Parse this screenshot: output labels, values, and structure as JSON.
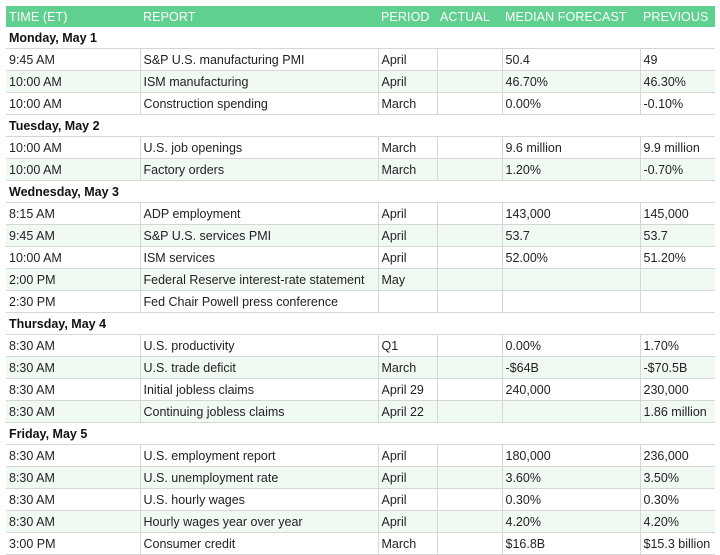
{
  "headers": {
    "time": "TIME (ET)",
    "report": "REPORT",
    "period": "PERIOD",
    "actual": "ACTUAL",
    "median_forecast": "MEDIAN FORECAST",
    "previous": "PREVIOUS"
  },
  "days": [
    {
      "label": "Monday, May 1",
      "rows": [
        {
          "time": "9:45 AM",
          "report": "S&P U.S. manufacturing PMI",
          "period": "April",
          "actual": "",
          "forecast": "50.4",
          "previous": "49"
        },
        {
          "time": "10:00 AM",
          "report": "ISM manufacturing",
          "period": "April",
          "actual": "",
          "forecast": "46.70%",
          "previous": "46.30%"
        },
        {
          "time": "10:00 AM",
          "report": "Construction spending",
          "period": "March",
          "actual": "",
          "forecast": "0.00%",
          "previous": "-0.10%"
        }
      ]
    },
    {
      "label": "Tuesday, May 2",
      "rows": [
        {
          "time": "10:00 AM",
          "report": "U.S. job openings",
          "period": "March",
          "actual": "",
          "forecast": "9.6 million",
          "previous": "9.9 million"
        },
        {
          "time": "10:00 AM",
          "report": "Factory orders",
          "period": "March",
          "actual": "",
          "forecast": "1.20%",
          "previous": "-0.70%"
        }
      ]
    },
    {
      "label": "Wednesday, May 3",
      "rows": [
        {
          "time": "8:15 AM",
          "report": "ADP employment",
          "period": "April",
          "actual": "",
          "forecast": "143,000",
          "previous": "145,000"
        },
        {
          "time": "9:45 AM",
          "report": "S&P U.S. services PMI",
          "period": "April",
          "actual": "",
          "forecast": "53.7",
          "previous": "53.7"
        },
        {
          "time": "10:00 AM",
          "report": "ISM services",
          "period": "April",
          "actual": "",
          "forecast": "52.00%",
          "previous": "51.20%"
        },
        {
          "time": "2:00 PM",
          "report": "Federal Reserve interest-rate statement",
          "period": "May",
          "actual": "",
          "forecast": "",
          "previous": ""
        },
        {
          "time": "2:30 PM",
          "report": "Fed Chair Powell press conference",
          "period": "",
          "actual": "",
          "forecast": "",
          "previous": ""
        }
      ]
    },
    {
      "label": "Thursday, May 4",
      "rows": [
        {
          "time": "8:30 AM",
          "report": "U.S. productivity",
          "period": "Q1",
          "actual": "",
          "forecast": "0.00%",
          "previous": "1.70%"
        },
        {
          "time": "8:30 AM",
          "report": "U.S. trade deficit",
          "period": "March",
          "actual": "",
          "forecast": "-$64B",
          "previous": "-$70.5B"
        },
        {
          "time": "8:30 AM",
          "report": "Initial jobless claims",
          "period": "April 29",
          "actual": "",
          "forecast": "240,000",
          "previous": "230,000"
        },
        {
          "time": "8:30 AM",
          "report": "Continuing jobless claims",
          "period": "April 22",
          "actual": "",
          "forecast": "",
          "previous": "1.86 million"
        }
      ]
    },
    {
      "label": "Friday, May 5",
      "rows": [
        {
          "time": "8:30 AM",
          "report": "U.S. employment report",
          "period": "April",
          "actual": "",
          "forecast": "180,000",
          "previous": "236,000"
        },
        {
          "time": "8:30 AM",
          "report": "U.S. unemployment rate",
          "period": "April",
          "actual": "",
          "forecast": "3.60%",
          "previous": "3.50%"
        },
        {
          "time": "8:30 AM",
          "report": "U.S. hourly wages",
          "period": "April",
          "actual": "",
          "forecast": "0.30%",
          "previous": "0.30%"
        },
        {
          "time": "8:30 AM",
          "report": "Hourly wages year over year",
          "period": "April",
          "actual": "",
          "forecast": "4.20%",
          "previous": "4.20%"
        },
        {
          "time": "3:00 PM",
          "report": "Consumer credit",
          "period": "March",
          "actual": "",
          "forecast": "$16.8B",
          "previous": "$15.3 billion"
        }
      ]
    }
  ]
}
